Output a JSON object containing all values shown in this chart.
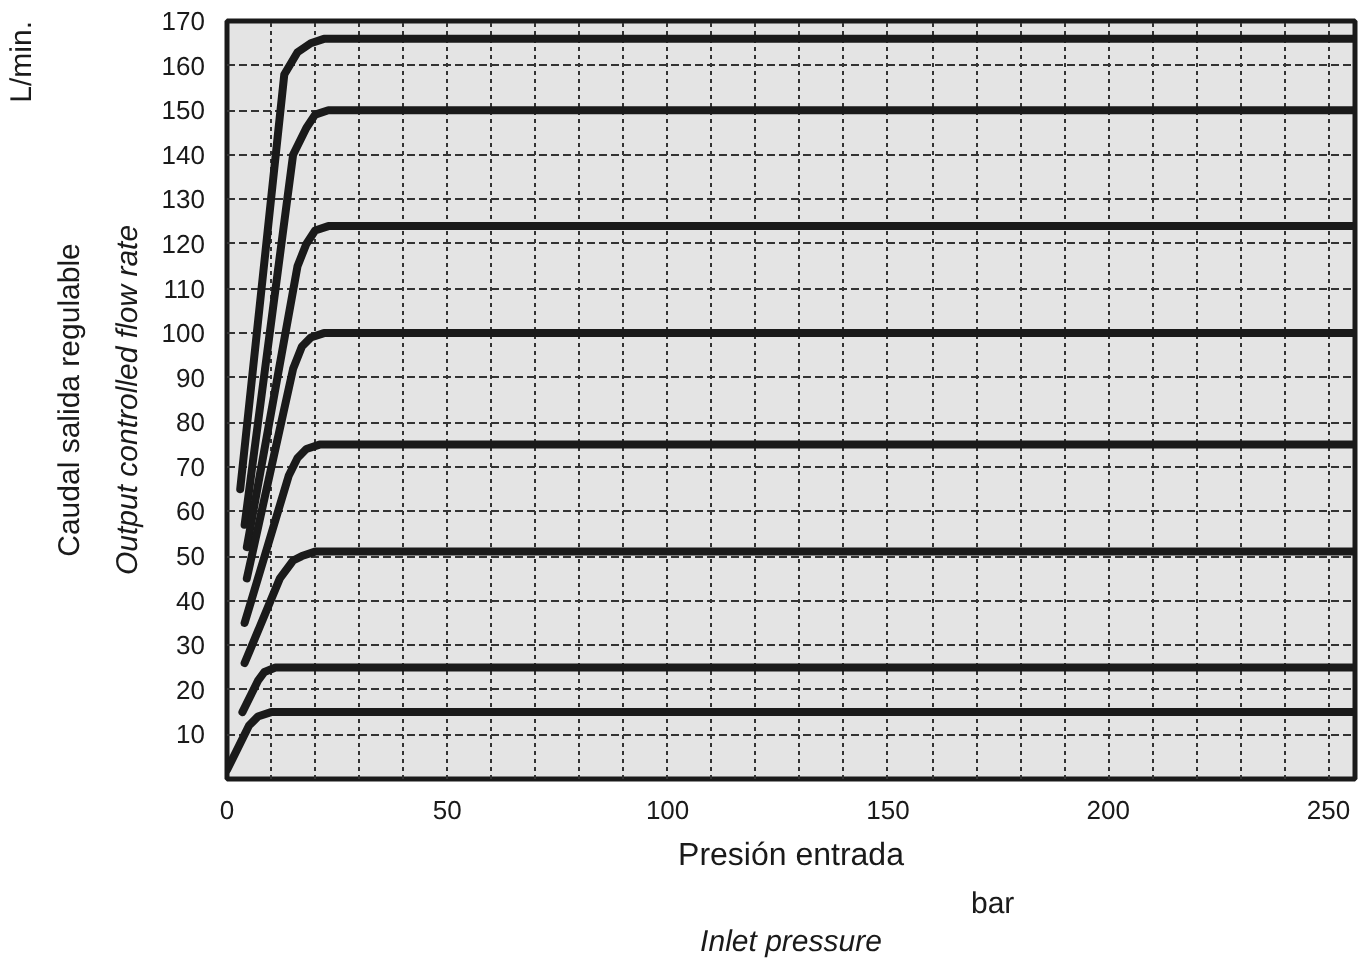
{
  "chart_data": {
    "type": "line",
    "xlabel": "Presión entrada",
    "ylabel": "Caudal salida regulable",
    "annotations": [
      "Output controlled flow rate",
      "Inlet pressure",
      "bar",
      "L/min."
    ],
    "xlim": [
      0,
      256
    ],
    "ylim": [
      0,
      170
    ],
    "xticks": [
      0,
      {
        "value": 10,
        "label": null
      },
      {
        "value": 20,
        "label": null
      },
      {
        "value": 30,
        "label": null
      },
      {
        "value": 40,
        "label": null
      },
      50,
      {
        "value": 60,
        "label": null
      },
      {
        "value": 70,
        "label": null
      },
      {
        "value": 80,
        "label": null
      },
      {
        "value": 90,
        "label": null
      },
      100,
      {
        "value": 110,
        "label": null
      },
      {
        "value": 120,
        "label": null
      },
      {
        "value": 130,
        "label": null
      },
      {
        "value": 140,
        "label": null
      },
      150,
      {
        "value": 160,
        "label": null
      },
      {
        "value": 170,
        "label": null
      },
      {
        "value": 180,
        "label": null
      },
      {
        "value": 190,
        "label": null
      },
      200,
      {
        "value": 210,
        "label": null
      },
      {
        "value": 220,
        "label": null
      },
      {
        "value": 230,
        "label": null
      },
      {
        "value": 240,
        "label": null
      },
      250
    ],
    "yticks": [
      10,
      20,
      30,
      40,
      50,
      60,
      70,
      80,
      90,
      100,
      110,
      120,
      130,
      140,
      150,
      160,
      170
    ],
    "grid": true,
    "marker": "none",
    "line_style": "solid",
    "series": [
      {
        "color": "#1a1a1a",
        "x": [
          3,
          13,
          16,
          19,
          22,
          256
        ],
        "values": [
          65,
          158,
          163,
          165,
          166,
          166
        ]
      },
      {
        "color": "#1a1a1a",
        "x": [
          4,
          15,
          18,
          20,
          23,
          256
        ],
        "values": [
          57,
          140,
          146,
          149,
          150,
          150
        ]
      },
      {
        "color": "#1a1a1a",
        "x": [
          4.5,
          16,
          18,
          20,
          23,
          256
        ],
        "values": [
          52,
          115,
          120,
          123,
          124,
          124
        ]
      },
      {
        "color": "#1a1a1a",
        "x": [
          4.5,
          15,
          17,
          19,
          22,
          256
        ],
        "values": [
          45,
          92,
          97,
          99,
          100,
          100
        ]
      },
      {
        "color": "#1a1a1a",
        "x": [
          4,
          14,
          16,
          18,
          21,
          256
        ],
        "values": [
          35,
          68,
          72,
          74,
          75,
          75
        ]
      },
      {
        "color": "#1a1a1a",
        "x": [
          4,
          12,
          15,
          17,
          20,
          256
        ],
        "values": [
          26,
          45,
          49,
          50,
          51,
          51
        ]
      },
      {
        "color": "#1a1a1a",
        "x": [
          3.5,
          7,
          8.5,
          11,
          256
        ],
        "values": [
          15,
          22,
          24,
          25,
          25
        ]
      },
      {
        "color": "#1a1a1a",
        "x": [
          0,
          5,
          7,
          10,
          256
        ],
        "values": [
          2,
          12,
          14,
          15,
          15
        ]
      }
    ]
  }
}
